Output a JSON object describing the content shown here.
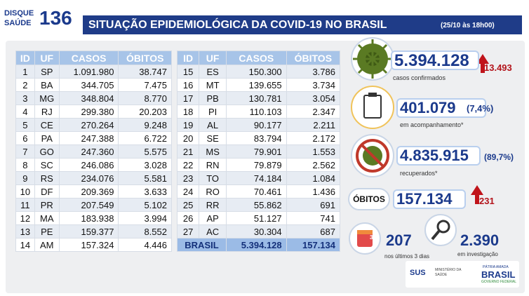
{
  "header": {
    "logo_top": "DISQUE",
    "logo_bottom": "SAÚDE",
    "logo_number": "136",
    "title": "SITUAÇÃO EPIDEMIOLÓGICA DA COVID-19 NO BRASIL",
    "timestamp": "(25/10 às 18h00)"
  },
  "tables": [
    {
      "columns": [
        "ID",
        "UF",
        "CASOS",
        "ÓBITOS"
      ],
      "rows": [
        [
          "1",
          "SP",
          "1.091.980",
          "38.747"
        ],
        [
          "2",
          "BA",
          "344.705",
          "7.475"
        ],
        [
          "3",
          "MG",
          "348.804",
          "8.770"
        ],
        [
          "4",
          "RJ",
          "299.380",
          "20.203"
        ],
        [
          "5",
          "CE",
          "270.264",
          "9.248"
        ],
        [
          "6",
          "PA",
          "247.388",
          "6.722"
        ],
        [
          "7",
          "GO",
          "247.360",
          "5.575"
        ],
        [
          "8",
          "SC",
          "246.086",
          "3.028"
        ],
        [
          "9",
          "RS",
          "234.076",
          "5.581"
        ],
        [
          "10",
          "DF",
          "209.369",
          "3.633"
        ],
        [
          "11",
          "PR",
          "207.549",
          "5.102"
        ],
        [
          "12",
          "MA",
          "183.938",
          "3.994"
        ],
        [
          "13",
          "PE",
          "159.377",
          "8.552"
        ],
        [
          "14",
          "AM",
          "157.324",
          "4.446"
        ]
      ]
    },
    {
      "columns": [
        "ID",
        "UF",
        "CASOS",
        "ÓBITOS"
      ],
      "rows": [
        [
          "15",
          "ES",
          "150.300",
          "3.786"
        ],
        [
          "16",
          "MT",
          "139.655",
          "3.734"
        ],
        [
          "17",
          "PB",
          "130.781",
          "3.054"
        ],
        [
          "18",
          "PI",
          "110.103",
          "2.347"
        ],
        [
          "19",
          "AL",
          "90.177",
          "2.211"
        ],
        [
          "20",
          "SE",
          "83.794",
          "2.172"
        ],
        [
          "21",
          "MS",
          "79.901",
          "1.553"
        ],
        [
          "22",
          "RN",
          "79.879",
          "2.562"
        ],
        [
          "23",
          "TO",
          "74.184",
          "1.084"
        ],
        [
          "24",
          "RO",
          "70.461",
          "1.436"
        ],
        [
          "25",
          "RR",
          "55.862",
          "691"
        ],
        [
          "26",
          "AP",
          "51.127",
          "741"
        ],
        [
          "27",
          "AC",
          "30.304",
          "687"
        ]
      ],
      "total": [
        "BRASIL",
        "5.394.128",
        "157.134"
      ]
    }
  ],
  "stats": {
    "confirmed": {
      "value": "5.394.128",
      "increase": "13.493",
      "label": "casos confirmados"
    },
    "monitoring": {
      "value": "401.079",
      "percent": "(7,4%)",
      "label": "em acompanhamento*"
    },
    "recovered": {
      "value": "4.835.915",
      "percent": "(89,7%)",
      "label": "recuperados*"
    },
    "deaths": {
      "title": "ÓBITOS",
      "value": "157.134",
      "increase": "231"
    },
    "recent": {
      "value": "207",
      "label": "nos últimos 3 dias",
      "icon": "3"
    },
    "investigation": {
      "value": "2.390",
      "label": "em investigação"
    }
  },
  "footer": {
    "sus": "SUS",
    "ministry": "MINISTÉRIO DA SAÚDE",
    "brand_top": "PÁTRIA AMADA",
    "brand_main": "BRASIL",
    "brand_bottom": "GOVERNO FEDERAL"
  }
}
